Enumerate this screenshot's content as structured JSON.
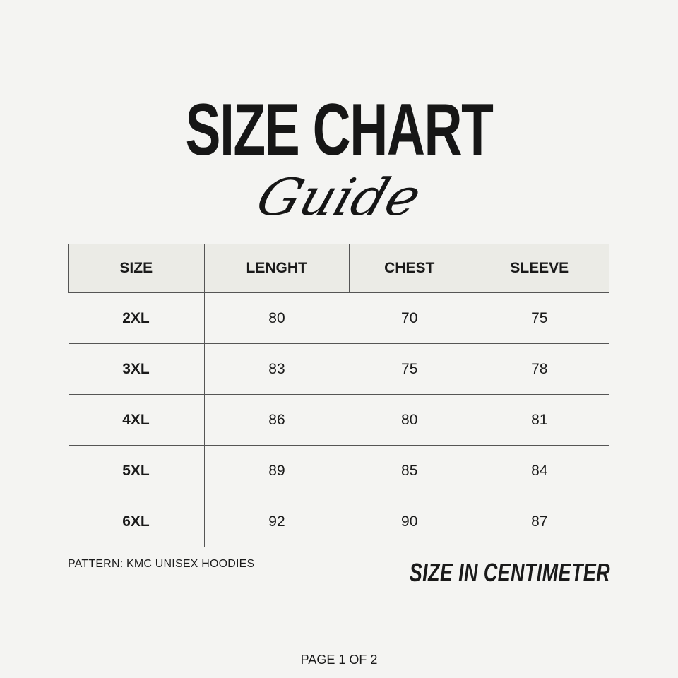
{
  "title": "SIZE CHART",
  "subtitle": "Guide",
  "table": {
    "headers": [
      "SIZE",
      "LENGHT",
      "CHEST",
      "SLEEVE"
    ],
    "rows": [
      [
        "2XL",
        "80",
        "70",
        "75"
      ],
      [
        "3XL",
        "83",
        "75",
        "78"
      ],
      [
        "4XL",
        "86",
        "80",
        "81"
      ],
      [
        "5XL",
        "89",
        "85",
        "84"
      ],
      [
        "6XL",
        "92",
        "90",
        "87"
      ]
    ]
  },
  "pattern": "PATTERN: KMC UNISEX HOODIES",
  "unit_note": "SIZE IN CENTIMETER",
  "page_indicator": "PAGE 1 OF 2",
  "colors": {
    "background": "#f4f4f2",
    "header_bg": "#ebebe6",
    "text": "#1a1a1a"
  }
}
